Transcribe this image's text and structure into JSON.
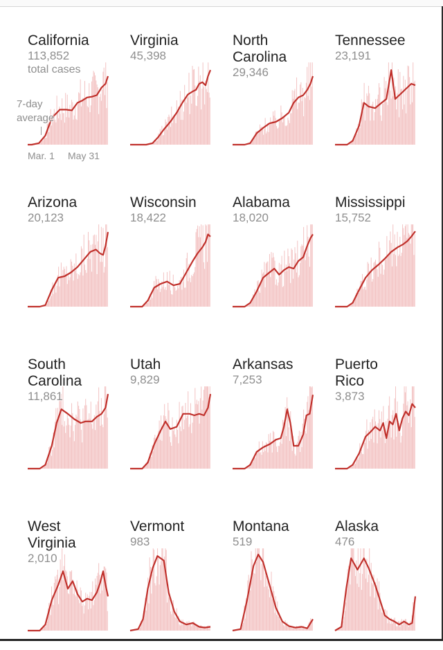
{
  "note": {
    "total_cases": "total cases",
    "avg_line1": "7-day",
    "avg_line2": "average"
  },
  "ticks": {
    "start": "Mar. 1",
    "end": "May 31"
  },
  "colors": {
    "line": "#c0302b",
    "bars": "#f3c3c3"
  },
  "chart_data": [
    {
      "type": "bar",
      "state": "California",
      "name_lines": [
        "California"
      ],
      "cases": "113,852",
      "ylim": [
        0,
        1
      ],
      "avg": [
        [
          0,
          0
        ],
        [
          0.05,
          0
        ],
        [
          0.14,
          0.02
        ],
        [
          0.22,
          0.12
        ],
        [
          0.3,
          0.35
        ],
        [
          0.4,
          0.46
        ],
        [
          0.48,
          0.46
        ],
        [
          0.55,
          0.45
        ],
        [
          0.62,
          0.55
        ],
        [
          0.68,
          0.58
        ],
        [
          0.74,
          0.62
        ],
        [
          0.8,
          0.63
        ],
        [
          0.86,
          0.65
        ],
        [
          0.92,
          0.75
        ],
        [
          0.97,
          0.8
        ],
        [
          1,
          0.9
        ]
      ]
    },
    {
      "type": "bar",
      "state": "Virginia",
      "name_lines": [
        "Virginia"
      ],
      "cases": "45,398",
      "ylim": [
        0,
        1
      ],
      "avg": [
        [
          0,
          0
        ],
        [
          0.2,
          0
        ],
        [
          0.28,
          0.02
        ],
        [
          0.35,
          0.1
        ],
        [
          0.42,
          0.2
        ],
        [
          0.5,
          0.3
        ],
        [
          0.58,
          0.42
        ],
        [
          0.65,
          0.55
        ],
        [
          0.72,
          0.66
        ],
        [
          0.78,
          0.7
        ],
        [
          0.82,
          0.72
        ],
        [
          0.86,
          0.8
        ],
        [
          0.9,
          0.82
        ],
        [
          0.94,
          0.78
        ],
        [
          0.97,
          0.9
        ],
        [
          1,
          0.98
        ]
      ]
    },
    {
      "type": "bar",
      "state": "North Carolina",
      "name_lines": [
        "North",
        "Carolina"
      ],
      "cases": "29,346",
      "ylim": [
        0,
        1
      ],
      "avg": [
        [
          0,
          0
        ],
        [
          0.15,
          0
        ],
        [
          0.22,
          0.02
        ],
        [
          0.3,
          0.15
        ],
        [
          0.38,
          0.22
        ],
        [
          0.46,
          0.28
        ],
        [
          0.54,
          0.3
        ],
        [
          0.62,
          0.35
        ],
        [
          0.7,
          0.42
        ],
        [
          0.76,
          0.55
        ],
        [
          0.82,
          0.62
        ],
        [
          0.88,
          0.65
        ],
        [
          0.93,
          0.72
        ],
        [
          0.97,
          0.8
        ],
        [
          1,
          0.9
        ]
      ]
    },
    {
      "type": "bar",
      "state": "Tennessee",
      "name_lines": [
        "Tennessee"
      ],
      "cases": "23,191",
      "ylim": [
        0,
        1
      ],
      "avg": [
        [
          0,
          0
        ],
        [
          0.15,
          0
        ],
        [
          0.22,
          0.05
        ],
        [
          0.3,
          0.25
        ],
        [
          0.36,
          0.55
        ],
        [
          0.42,
          0.5
        ],
        [
          0.5,
          0.48
        ],
        [
          0.58,
          0.55
        ],
        [
          0.64,
          0.6
        ],
        [
          0.7,
          0.98
        ],
        [
          0.75,
          0.6
        ],
        [
          0.8,
          0.65
        ],
        [
          0.85,
          0.7
        ],
        [
          0.9,
          0.75
        ],
        [
          0.95,
          0.8
        ],
        [
          1,
          0.78
        ]
      ]
    },
    {
      "type": "bar",
      "state": "Arizona",
      "name_lines": [
        "Arizona"
      ],
      "cases": "20,123",
      "ylim": [
        0,
        1
      ],
      "avg": [
        [
          0,
          0
        ],
        [
          0.15,
          0
        ],
        [
          0.22,
          0.02
        ],
        [
          0.3,
          0.22
        ],
        [
          0.38,
          0.38
        ],
        [
          0.46,
          0.4
        ],
        [
          0.54,
          0.45
        ],
        [
          0.62,
          0.52
        ],
        [
          0.7,
          0.62
        ],
        [
          0.78,
          0.72
        ],
        [
          0.85,
          0.75
        ],
        [
          0.9,
          0.7
        ],
        [
          0.94,
          0.68
        ],
        [
          0.97,
          0.8
        ],
        [
          1,
          0.98
        ]
      ]
    },
    {
      "type": "bar",
      "state": "Wisconsin",
      "name_lines": [
        "Wisconsin"
      ],
      "cases": "18,422",
      "ylim": [
        0,
        1
      ],
      "avg": [
        [
          0,
          0
        ],
        [
          0.15,
          0
        ],
        [
          0.22,
          0.08
        ],
        [
          0.3,
          0.25
        ],
        [
          0.38,
          0.3
        ],
        [
          0.46,
          0.33
        ],
        [
          0.54,
          0.28
        ],
        [
          0.62,
          0.3
        ],
        [
          0.7,
          0.45
        ],
        [
          0.78,
          0.6
        ],
        [
          0.84,
          0.7
        ],
        [
          0.9,
          0.78
        ],
        [
          0.94,
          0.85
        ],
        [
          0.97,
          0.95
        ],
        [
          1,
          0.92
        ]
      ]
    },
    {
      "type": "bar",
      "state": "Alabama",
      "name_lines": [
        "Alabama"
      ],
      "cases": "18,020",
      "ylim": [
        0,
        1
      ],
      "avg": [
        [
          0,
          0
        ],
        [
          0.15,
          0
        ],
        [
          0.22,
          0.05
        ],
        [
          0.3,
          0.2
        ],
        [
          0.38,
          0.38
        ],
        [
          0.46,
          0.45
        ],
        [
          0.52,
          0.5
        ],
        [
          0.58,
          0.42
        ],
        [
          0.64,
          0.48
        ],
        [
          0.7,
          0.52
        ],
        [
          0.76,
          0.5
        ],
        [
          0.82,
          0.6
        ],
        [
          0.88,
          0.65
        ],
        [
          0.93,
          0.8
        ],
        [
          0.97,
          0.9
        ],
        [
          1,
          0.95
        ]
      ]
    },
    {
      "type": "bar",
      "state": "Mississippi",
      "name_lines": [
        "Mississippi"
      ],
      "cases": "15,752",
      "ylim": [
        0,
        1
      ],
      "avg": [
        [
          0,
          0
        ],
        [
          0.15,
          0
        ],
        [
          0.22,
          0.05
        ],
        [
          0.3,
          0.22
        ],
        [
          0.38,
          0.38
        ],
        [
          0.46,
          0.48
        ],
        [
          0.54,
          0.55
        ],
        [
          0.62,
          0.63
        ],
        [
          0.7,
          0.72
        ],
        [
          0.78,
          0.78
        ],
        [
          0.85,
          0.82
        ],
        [
          0.9,
          0.86
        ],
        [
          0.95,
          0.92
        ],
        [
          1,
          0.99
        ]
      ]
    },
    {
      "type": "bar",
      "state": "South Carolina",
      "name_lines": [
        "South",
        "Carolina"
      ],
      "cases": "11,861",
      "ylim": [
        0,
        1
      ],
      "avg": [
        [
          0,
          0
        ],
        [
          0.15,
          0
        ],
        [
          0.22,
          0.05
        ],
        [
          0.3,
          0.3
        ],
        [
          0.36,
          0.6
        ],
        [
          0.42,
          0.78
        ],
        [
          0.5,
          0.72
        ],
        [
          0.58,
          0.65
        ],
        [
          0.66,
          0.6
        ],
        [
          0.72,
          0.62
        ],
        [
          0.8,
          0.62
        ],
        [
          0.86,
          0.68
        ],
        [
          0.92,
          0.72
        ],
        [
          0.97,
          0.8
        ],
        [
          1,
          0.98
        ]
      ]
    },
    {
      "type": "bar",
      "state": "Utah",
      "name_lines": [
        "Utah"
      ],
      "cases": "9,829",
      "ylim": [
        0,
        1
      ],
      "avg": [
        [
          0,
          0
        ],
        [
          0.15,
          0
        ],
        [
          0.22,
          0.08
        ],
        [
          0.3,
          0.32
        ],
        [
          0.38,
          0.5
        ],
        [
          0.44,
          0.62
        ],
        [
          0.5,
          0.52
        ],
        [
          0.58,
          0.55
        ],
        [
          0.66,
          0.72
        ],
        [
          0.74,
          0.72
        ],
        [
          0.8,
          0.7
        ],
        [
          0.86,
          0.72
        ],
        [
          0.92,
          0.7
        ],
        [
          0.97,
          0.8
        ],
        [
          1,
          0.98
        ]
      ]
    },
    {
      "type": "bar",
      "state": "Arkansas",
      "name_lines": [
        "Arkansas"
      ],
      "cases": "7,253",
      "ylim": [
        0,
        1
      ],
      "avg": [
        [
          0,
          0
        ],
        [
          0.15,
          0
        ],
        [
          0.22,
          0.05
        ],
        [
          0.3,
          0.22
        ],
        [
          0.38,
          0.28
        ],
        [
          0.46,
          0.32
        ],
        [
          0.54,
          0.38
        ],
        [
          0.6,
          0.4
        ],
        [
          0.64,
          0.55
        ],
        [
          0.68,
          0.78
        ],
        [
          0.72,
          0.6
        ],
        [
          0.76,
          0.3
        ],
        [
          0.82,
          0.3
        ],
        [
          0.88,
          0.45
        ],
        [
          0.92,
          0.7
        ],
        [
          0.96,
          0.72
        ],
        [
          1,
          0.97
        ]
      ]
    },
    {
      "type": "bar",
      "state": "Puerto Rico",
      "name_lines": [
        "Puerto",
        "Rico"
      ],
      "cases": "3,873",
      "ylim": [
        0,
        1
      ],
      "avg": [
        [
          0,
          0
        ],
        [
          0.15,
          0
        ],
        [
          0.22,
          0.05
        ],
        [
          0.3,
          0.2
        ],
        [
          0.38,
          0.42
        ],
        [
          0.44,
          0.48
        ],
        [
          0.5,
          0.55
        ],
        [
          0.56,
          0.5
        ],
        [
          0.6,
          0.6
        ],
        [
          0.64,
          0.4
        ],
        [
          0.68,
          0.62
        ],
        [
          0.72,
          0.58
        ],
        [
          0.76,
          0.72
        ],
        [
          0.8,
          0.5
        ],
        [
          0.84,
          0.66
        ],
        [
          0.88,
          0.75
        ],
        [
          0.92,
          0.7
        ],
        [
          0.96,
          0.85
        ],
        [
          1,
          0.8
        ]
      ]
    },
    {
      "type": "bar",
      "state": "West Virginia",
      "name_lines": [
        "West",
        "Virginia"
      ],
      "cases": "2,010",
      "ylim": [
        0,
        1
      ],
      "avg": [
        [
          0,
          0
        ],
        [
          0.15,
          0
        ],
        [
          0.22,
          0.08
        ],
        [
          0.3,
          0.4
        ],
        [
          0.38,
          0.6
        ],
        [
          0.44,
          0.78
        ],
        [
          0.5,
          0.55
        ],
        [
          0.56,
          0.65
        ],
        [
          0.62,
          0.48
        ],
        [
          0.68,
          0.38
        ],
        [
          0.74,
          0.42
        ],
        [
          0.8,
          0.4
        ],
        [
          0.86,
          0.5
        ],
        [
          0.9,
          0.62
        ],
        [
          0.94,
          0.78
        ],
        [
          0.97,
          0.6
        ],
        [
          1,
          0.45
        ]
      ]
    },
    {
      "type": "bar",
      "state": "Vermont",
      "name_lines": [
        "Vermont"
      ],
      "cases": "983",
      "ylim": [
        0,
        1
      ],
      "avg": [
        [
          0,
          0
        ],
        [
          0.1,
          0.02
        ],
        [
          0.16,
          0.15
        ],
        [
          0.22,
          0.55
        ],
        [
          0.28,
          0.82
        ],
        [
          0.34,
          0.98
        ],
        [
          0.42,
          0.92
        ],
        [
          0.48,
          0.5
        ],
        [
          0.55,
          0.25
        ],
        [
          0.62,
          0.12
        ],
        [
          0.7,
          0.08
        ],
        [
          0.78,
          0.1
        ],
        [
          0.86,
          0.05
        ],
        [
          0.93,
          0.04
        ],
        [
          1,
          0.05
        ]
      ]
    },
    {
      "type": "bar",
      "state": "Montana",
      "name_lines": [
        "Montana"
      ],
      "cases": "519",
      "ylim": [
        0,
        1
      ],
      "avg": [
        [
          0,
          0
        ],
        [
          0.1,
          0.02
        ],
        [
          0.18,
          0.4
        ],
        [
          0.26,
          0.85
        ],
        [
          0.32,
          1
        ],
        [
          0.38,
          0.9
        ],
        [
          0.46,
          0.6
        ],
        [
          0.54,
          0.3
        ],
        [
          0.62,
          0.12
        ],
        [
          0.7,
          0.06
        ],
        [
          0.78,
          0.04
        ],
        [
          0.86,
          0.05
        ],
        [
          0.93,
          0.03
        ],
        [
          1,
          0.15
        ]
      ]
    },
    {
      "type": "bar",
      "state": "Alaska",
      "name_lines": [
        "Alaska"
      ],
      "cases": "476",
      "ylim": [
        0,
        1
      ],
      "avg": [
        [
          0,
          0
        ],
        [
          0.08,
          0.05
        ],
        [
          0.14,
          0.55
        ],
        [
          0.2,
          0.95
        ],
        [
          0.28,
          0.8
        ],
        [
          0.36,
          0.95
        ],
        [
          0.42,
          0.82
        ],
        [
          0.5,
          0.6
        ],
        [
          0.56,
          0.4
        ],
        [
          0.62,
          0.2
        ],
        [
          0.68,
          0.15
        ],
        [
          0.74,
          0.12
        ],
        [
          0.8,
          0.08
        ],
        [
          0.86,
          0.12
        ],
        [
          0.92,
          0.08
        ],
        [
          0.96,
          0.1
        ],
        [
          1,
          0.45
        ]
      ]
    }
  ]
}
